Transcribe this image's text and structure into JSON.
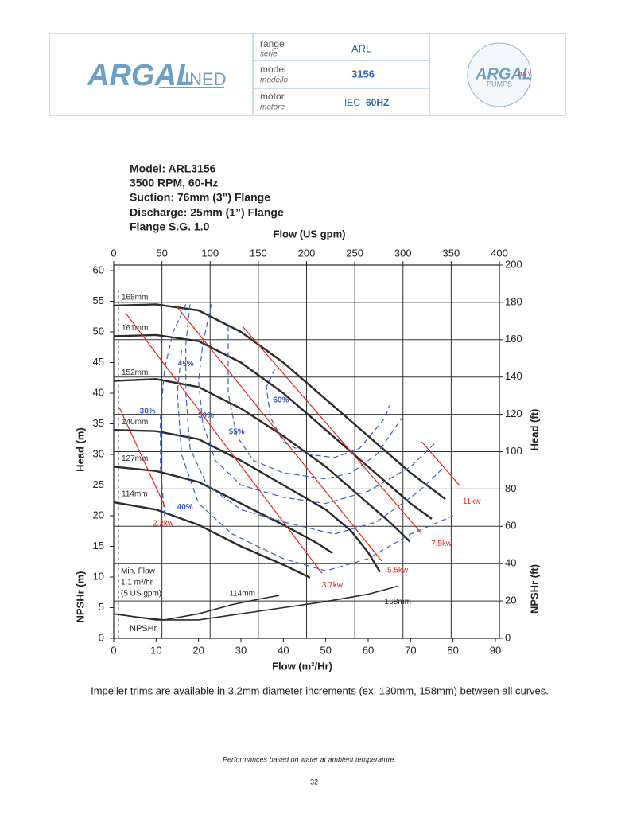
{
  "header": {
    "logo": "ARGAL",
    "logo_sub": "INED",
    "rows": [
      {
        "label": "range",
        "sublabel": "serie",
        "value": "ARL"
      },
      {
        "label": "model",
        "sublabel": "modello",
        "value": "3156"
      },
      {
        "label": "motor",
        "sublabel": "motore",
        "value": "IEC",
        "value2": "60HZ"
      }
    ],
    "badge": "ARGAL",
    "badge_country": "ITALY",
    "badge_sub": "PUMPS"
  },
  "specs": [
    "Model: ARL3156",
    "3500 RPM, 60-Hz",
    "Suction: 76mm (3\") Flange",
    "Discharge: 25mm (1”) Flange",
    "Flange S.G. 1.0"
  ],
  "chart_data": {
    "type": "line",
    "x_label": "Flow (m³/Hr)",
    "x2_label": "Flow (US gpm)",
    "y_label": "Head (m)",
    "y_label_low": "NPSHr (m)",
    "y2_label": "Head (ft)",
    "y2_label_low": "NPSHr (ft)",
    "xlim": [
      0,
      90
    ],
    "xticks": [
      0,
      10,
      20,
      30,
      40,
      50,
      60,
      70,
      80,
      90
    ],
    "x2lim": [
      0,
      400
    ],
    "x2ticks": [
      0,
      50,
      100,
      150,
      200,
      250,
      300,
      350,
      400
    ],
    "ylim": [
      0,
      60
    ],
    "yticks": [
      0,
      5,
      10,
      15,
      20,
      25,
      30,
      35,
      40,
      45,
      50,
      55,
      60
    ],
    "y2lim": [
      0,
      200
    ],
    "y2ticks": [
      0,
      20,
      40,
      60,
      80,
      100,
      120,
      140,
      160,
      180,
      200
    ],
    "grid": true,
    "series": [
      {
        "name": "168mm",
        "color": "#2b2b2b",
        "dash": false,
        "x": [
          0,
          10,
          20,
          30,
          40,
          50,
          60,
          70,
          78.2
        ],
        "values": [
          54.3,
          54.5,
          53.5,
          50,
          45,
          39,
          33,
          27,
          22.7
        ]
      },
      {
        "name": "161mm",
        "color": "#2b2b2b",
        "dash": false,
        "x": [
          0,
          10,
          20,
          30,
          40,
          50,
          60,
          70,
          75
        ],
        "values": [
          49.3,
          49.5,
          48.5,
          45,
          40,
          34,
          28,
          22,
          19.5
        ]
      },
      {
        "name": "152mm",
        "color": "#2b2b2b",
        "dash": false,
        "x": [
          0,
          10,
          20,
          30,
          40,
          50,
          60,
          65,
          69.8
        ],
        "values": [
          42,
          42.3,
          41,
          37.5,
          33,
          28,
          22,
          19,
          15.8
        ]
      },
      {
        "name": "140mm",
        "color": "#2b2b2b",
        "dash": false,
        "x": [
          0,
          10,
          20,
          30,
          40,
          50,
          56,
          60,
          62.8
        ],
        "values": [
          34,
          33.8,
          32.5,
          29,
          25,
          21,
          17.5,
          14,
          10.8
        ]
      },
      {
        "name": "127mm",
        "color": "#2b2b2b",
        "dash": false,
        "x": [
          0,
          10,
          20,
          30,
          40,
          48,
          51.6
        ],
        "values": [
          28,
          27.3,
          25.5,
          22,
          18.5,
          15.5,
          13.9
        ]
      },
      {
        "name": "114mm",
        "color": "#2b2b2b",
        "dash": false,
        "x": [
          0,
          10,
          20,
          30,
          40,
          46.3
        ],
        "values": [
          22.2,
          21,
          18.5,
          15,
          12,
          9.9
        ]
      },
      {
        "name": "30%",
        "color": "#3a5fc8",
        "dash": true,
        "x": [
          17,
          14,
          12,
          11,
          11,
          12
        ],
        "values": [
          54.5,
          50,
          44,
          36,
          28,
          20
        ]
      },
      {
        "name": "40%",
        "color": "#3a5fc8",
        "dash": true,
        "x": [
          16,
          15,
          16,
          20,
          28,
          40,
          50,
          60,
          70,
          80
        ],
        "values": [
          47,
          40,
          30,
          22,
          17,
          13,
          11,
          13,
          17,
          20
        ]
      },
      {
        "name": "45%",
        "color": "#3a5fc8",
        "dash": true,
        "x": [
          18,
          17,
          17,
          18,
          22,
          30,
          40,
          52,
          62,
          72,
          78
        ],
        "values": [
          54.5,
          48,
          40,
          31,
          25,
          21,
          19,
          17,
          19,
          24,
          28
        ]
      },
      {
        "name": "50%",
        "color": "#3a5fc8",
        "dash": true,
        "x": [
          23,
          21,
          20,
          21,
          24,
          30,
          40,
          50,
          60,
          70,
          76
        ],
        "values": [
          54.5,
          48,
          42,
          35,
          29,
          25,
          23,
          22,
          24,
          28,
          32
        ]
      },
      {
        "name": "55%",
        "color": "#3a5fc8",
        "dash": true,
        "x": [
          27,
          27,
          27,
          29,
          33,
          40,
          50,
          56,
          62,
          68
        ],
        "values": [
          51,
          45,
          40,
          33,
          29,
          27,
          26,
          27,
          30,
          36
        ]
      },
      {
        "name": "60%",
        "color": "#3a5fc8",
        "dash": true,
        "x": [
          38,
          36,
          37,
          40,
          46,
          52,
          58,
          64,
          65
        ],
        "values": [
          44,
          41,
          36,
          32,
          30,
          29.5,
          31,
          36,
          38
        ]
      },
      {
        "name": "2.2kw",
        "color": "#e8261c",
        "dash": false,
        "x": [
          1.3,
          12.2
        ],
        "values": [
          37.7,
          21.3
        ]
      },
      {
        "name": "3.7kw",
        "color": "#e8261c",
        "dash": false,
        "x": [
          2.8,
          49.1
        ],
        "values": [
          53.1,
          10.6
        ]
      },
      {
        "name": "5.5kw",
        "color": "#e8261c",
        "dash": false,
        "x": [
          14.8,
          63.2
        ],
        "values": [
          54.2,
          12.6
        ]
      },
      {
        "name": "7.5kw",
        "color": "#e8261c",
        "dash": false,
        "x": [
          30.4,
          72.6
        ],
        "values": [
          50.9,
          17.1
        ]
      },
      {
        "name": "11kw",
        "color": "#e8261c",
        "dash": false,
        "x": [
          72.6,
          81.6
        ],
        "values": [
          32.1,
          24.9
        ]
      },
      {
        "name": "114mm",
        "color": "#2b2b2b",
        "dash": false,
        "x": [
          0,
          5,
          12,
          20,
          28,
          35,
          39
        ],
        "values": [
          4,
          3.5,
          3,
          4,
          5.5,
          6.5,
          7
        ]
      },
      {
        "name": "168mm",
        "color": "#2b2b2b",
        "dash": false,
        "x": [
          0,
          10,
          20,
          30,
          40,
          50,
          60,
          67
        ],
        "values": [
          4,
          3,
          3,
          4,
          5,
          6,
          7.2,
          8.5
        ]
      }
    ],
    "min_flow": {
      "value": 1.1,
      "lines": [
        "Min. Flow",
        "1.1 m³/hr",
        "(5 US gpm)"
      ]
    },
    "npshr_label": "NPSHr"
  },
  "note": "Impeller trims are available in 3.2mm diameter increments (ex: 130mm, 158mm) between all curves.",
  "footer": {
    "text": "Performances based on water at ambient temperature.",
    "page": "32"
  }
}
